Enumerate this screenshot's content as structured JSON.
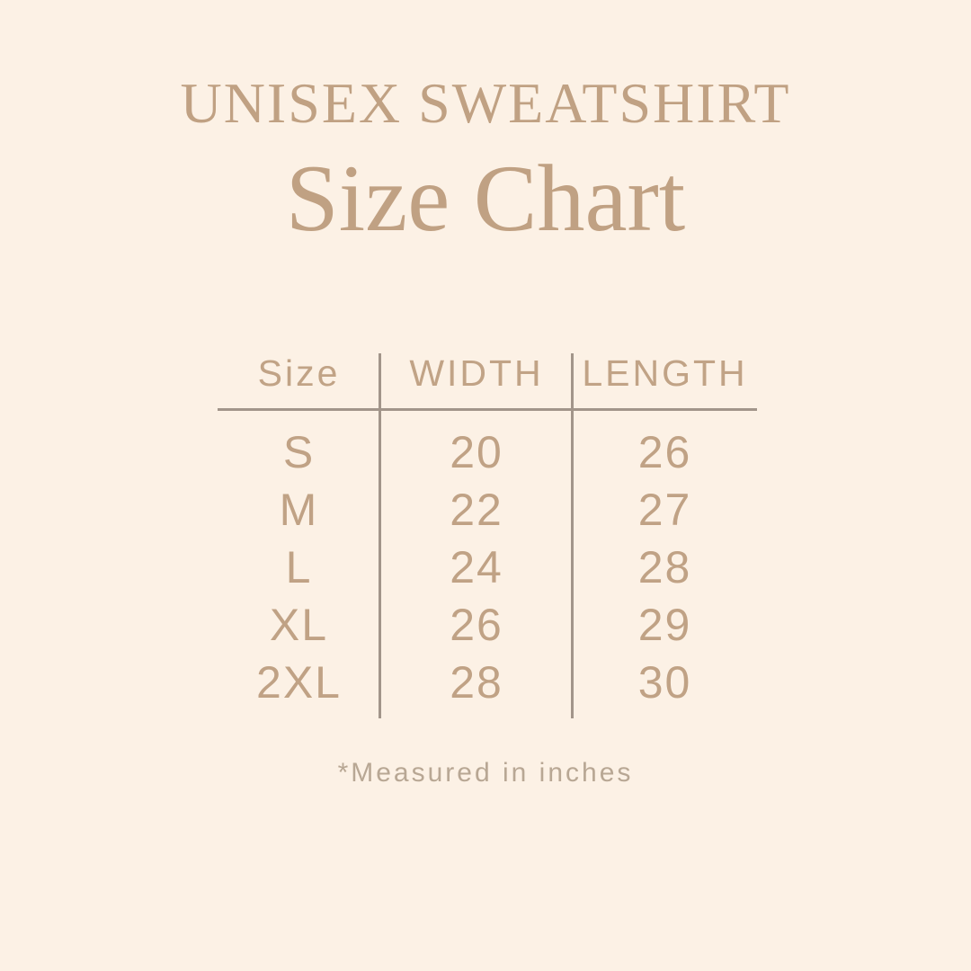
{
  "page": {
    "background_color": "#fcf1e5",
    "accent_text_color": "#c0a183",
    "muted_text_color": "#b8a794",
    "line_color": "#a2958a"
  },
  "header": {
    "title": "UNISEX SWEATSHIRT",
    "subtitle": "Size Chart"
  },
  "size_chart": {
    "columns": [
      "Size",
      "WIDTH",
      "LENGTH"
    ],
    "rows": [
      {
        "size": "S",
        "width": "20",
        "length": "26"
      },
      {
        "size": "M",
        "width": "22",
        "length": "27"
      },
      {
        "size": "L",
        "width": "24",
        "length": "28"
      },
      {
        "size": "XL",
        "width": "26",
        "length": "29"
      },
      {
        "size": "2XL",
        "width": "28",
        "length": "30"
      }
    ]
  },
  "footer": {
    "note": "*Measured in inches"
  }
}
